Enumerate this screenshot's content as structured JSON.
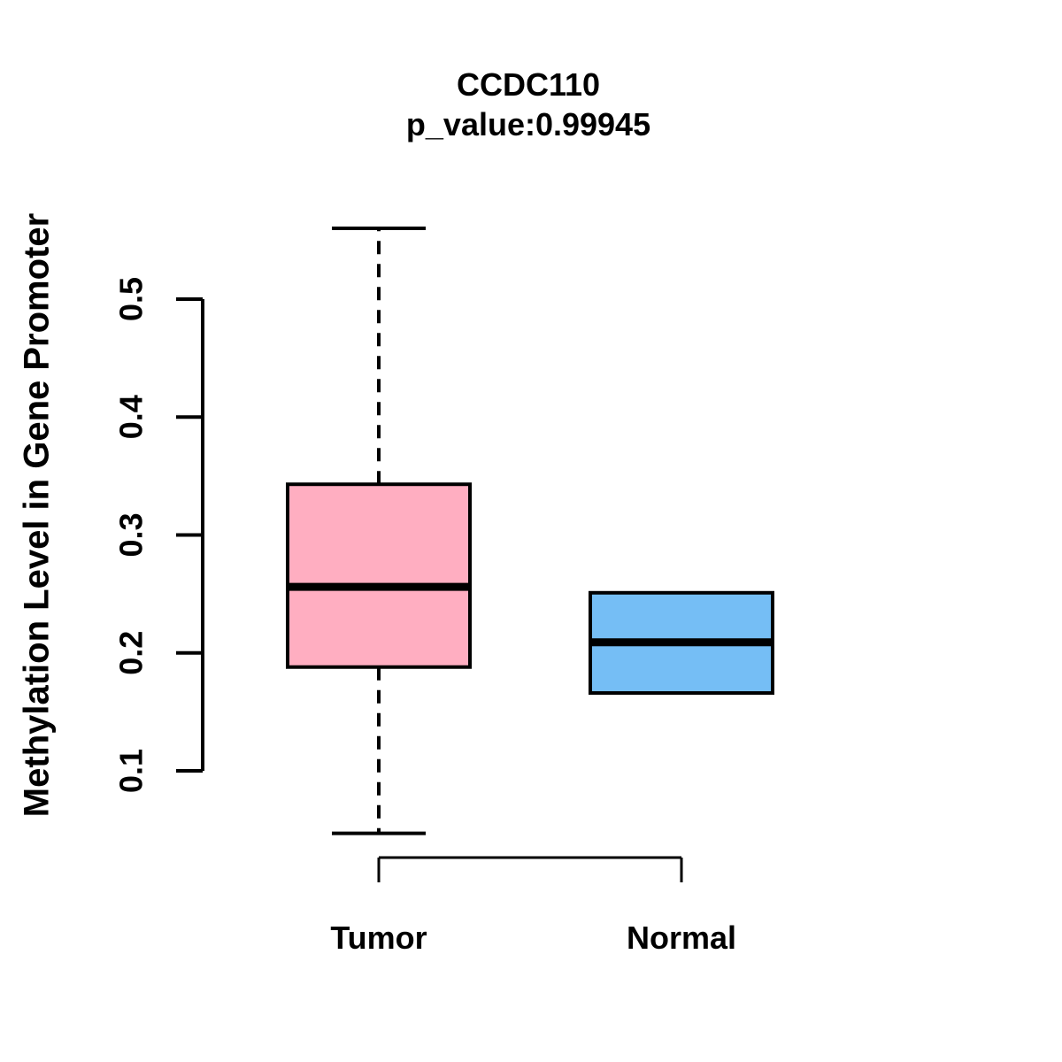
{
  "chart_data": {
    "type": "boxplot",
    "title": "CCDC110",
    "subtitle": "p_value:0.99945",
    "ylabel": "Methylation Level in Gene Promoter",
    "xlabel": "",
    "categories": [
      "Tumor",
      "Normal"
    ],
    "yticks": [
      0.1,
      0.2,
      0.3,
      0.4,
      0.5
    ],
    "ytick_labels": [
      "0.1",
      "0.2",
      "0.3",
      "0.4",
      "0.5"
    ],
    "ylim": [
      0.04,
      0.57
    ],
    "grid": false,
    "legend": "none",
    "boxes": [
      {
        "name": "Tumor",
        "fill_color": "#FFAEC1",
        "border_color": "#000000",
        "q1": 0.188,
        "median": 0.256,
        "q3": 0.343,
        "whisker_low": 0.047,
        "whisker_high": 0.56
      },
      {
        "name": "Normal",
        "fill_color": "#75BEF5",
        "border_color": "#000000",
        "q1": 0.166,
        "median": 0.209,
        "q3": 0.251,
        "whisker_low": null,
        "whisker_high": null
      }
    ]
  }
}
